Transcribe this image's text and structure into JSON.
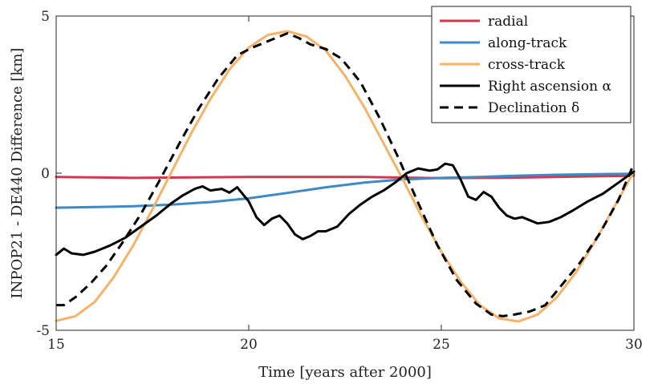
{
  "chart_data": {
    "type": "line",
    "xlabel": "Time [years after 2000]",
    "ylabel": "INPOP21 - DE440 Difference [km]",
    "xlim": [
      15,
      30
    ],
    "ylim": [
      -5,
      5
    ],
    "xticks": [
      15,
      20,
      25,
      30
    ],
    "yticks": [
      -5,
      0,
      5
    ],
    "legend_position": "top-right",
    "series": [
      {
        "name": "radial",
        "color": "#d0394e",
        "dash": "solid",
        "x": [
          15,
          17,
          20,
          23,
          25,
          27,
          29,
          30
        ],
        "y": [
          -0.12,
          -0.15,
          -0.12,
          -0.12,
          -0.16,
          -0.14,
          -0.1,
          -0.08
        ]
      },
      {
        "name": "along-track",
        "color": "#3e8ac5",
        "dash": "solid",
        "x": [
          15,
          16,
          17,
          18,
          19,
          20,
          21,
          22,
          23,
          24,
          25,
          26,
          27,
          28,
          29,
          30
        ],
        "y": [
          -1.1,
          -1.08,
          -1.05,
          -1.0,
          -0.92,
          -0.8,
          -0.63,
          -0.45,
          -0.3,
          -0.2,
          -0.15,
          -0.12,
          -0.08,
          -0.05,
          -0.03,
          -0.02
        ]
      },
      {
        "name": "cross-track",
        "color": "#f7b268",
        "dash": "solid",
        "x": [
          15,
          15.5,
          16,
          16.5,
          17,
          17.5,
          18,
          18.5,
          19,
          19.5,
          20,
          20.5,
          21,
          21.5,
          22,
          22.5,
          23,
          23.5,
          24,
          24.5,
          25,
          25.5,
          26,
          26.5,
          27,
          27.5,
          28,
          28.5,
          29,
          29.5,
          30
        ],
        "y": [
          -4.7,
          -4.55,
          -4.1,
          -3.3,
          -2.3,
          -1.15,
          0.05,
          1.25,
          2.35,
          3.3,
          4.0,
          4.4,
          4.52,
          4.35,
          3.9,
          3.1,
          2.1,
          0.95,
          -0.2,
          -1.4,
          -2.5,
          -3.45,
          -4.2,
          -4.62,
          -4.72,
          -4.5,
          -3.95,
          -3.15,
          -2.15,
          -1.05,
          0.05
        ]
      },
      {
        "name": "Right ascension α",
        "color": "#000000",
        "dash": "solid",
        "x": [
          15,
          15.2,
          15.4,
          15.7,
          16,
          16.4,
          16.8,
          17.2,
          17.6,
          18,
          18.3,
          18.6,
          18.8,
          19,
          19.3,
          19.5,
          19.7,
          20,
          20.2,
          20.4,
          20.6,
          20.8,
          21,
          21.2,
          21.4,
          21.6,
          21.8,
          22,
          22.3,
          22.6,
          22.9,
          23.2,
          23.5,
          23.8,
          24.1,
          24.4,
          24.7,
          24.9,
          25.1,
          25.3,
          25.5,
          25.7,
          25.9,
          26.1,
          26.3,
          26.5,
          26.7,
          26.9,
          27.1,
          27.3,
          27.5,
          27.8,
          28.1,
          28.4,
          28.8,
          29.2,
          29.6,
          30
        ],
        "y": [
          -2.6,
          -2.4,
          -2.55,
          -2.6,
          -2.5,
          -2.3,
          -2.05,
          -1.7,
          -1.35,
          -0.95,
          -0.7,
          -0.5,
          -0.42,
          -0.55,
          -0.5,
          -0.62,
          -0.45,
          -0.9,
          -1.4,
          -1.65,
          -1.45,
          -1.35,
          -1.6,
          -1.95,
          -2.1,
          -2.0,
          -1.85,
          -1.85,
          -1.7,
          -1.3,
          -1.0,
          -0.75,
          -0.55,
          -0.3,
          0.0,
          0.15,
          0.08,
          0.12,
          0.3,
          0.25,
          -0.2,
          -0.75,
          -0.85,
          -0.6,
          -0.75,
          -1.1,
          -1.35,
          -1.45,
          -1.4,
          -1.5,
          -1.6,
          -1.55,
          -1.4,
          -1.2,
          -0.9,
          -0.65,
          -0.3,
          0.05
        ]
      },
      {
        "name": "Declination δ",
        "color": "#000000",
        "dash": "dashed",
        "x": [
          15,
          15.2,
          15.5,
          15.9,
          16.3,
          16.7,
          17.2,
          17.7,
          18.2,
          18.7,
          19.2,
          19.7,
          20.1,
          20.5,
          20.8,
          21.0,
          21.3,
          21.6,
          22.0,
          22.4,
          22.9,
          23.4,
          23.9,
          24.4,
          24.9,
          25.4,
          25.9,
          26.3,
          26.6,
          26.9,
          27.3,
          27.7,
          28.1,
          28.6,
          29.1,
          29.6,
          30
        ],
        "y": [
          -4.2,
          -4.2,
          -3.95,
          -3.5,
          -2.95,
          -2.25,
          -1.3,
          -0.2,
          0.95,
          2.05,
          3.0,
          3.75,
          4.0,
          4.2,
          4.35,
          4.45,
          4.3,
          4.1,
          3.95,
          3.65,
          2.9,
          1.75,
          0.45,
          -0.95,
          -2.3,
          -3.4,
          -4.15,
          -4.5,
          -4.55,
          -4.5,
          -4.4,
          -4.2,
          -3.6,
          -2.85,
          -1.95,
          -0.85,
          0.3
        ]
      }
    ]
  }
}
